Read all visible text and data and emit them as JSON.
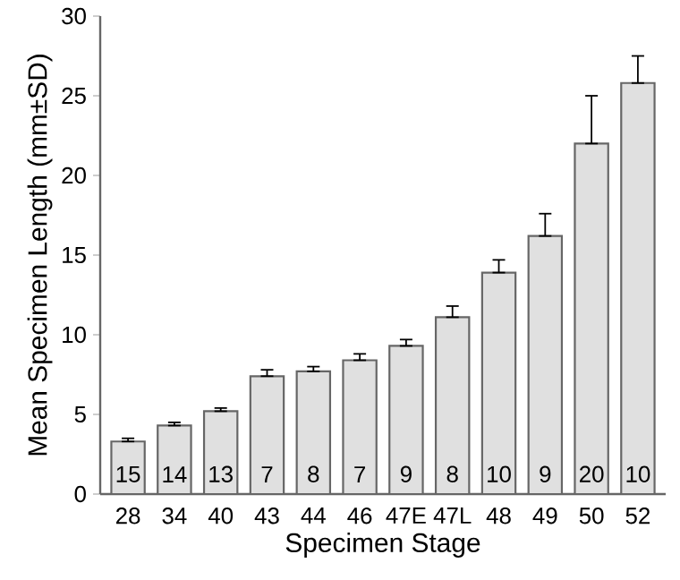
{
  "chart_data": {
    "type": "bar",
    "xlabel": "Specimen Stage",
    "ylabel": "Mean Specimen Length (mm±SD)",
    "categories": [
      "28",
      "34",
      "40",
      "43",
      "44",
      "46",
      "47E",
      "47L",
      "48",
      "49",
      "50",
      "52"
    ],
    "values": [
      3.3,
      4.3,
      5.2,
      7.4,
      7.7,
      8.4,
      9.3,
      11.1,
      13.9,
      16.2,
      22.0,
      25.8
    ],
    "errors": [
      [
        3.3,
        3.5
      ],
      [
        4.3,
        4.5
      ],
      [
        5.2,
        5.4
      ],
      [
        7.4,
        7.8
      ],
      [
        7.7,
        8.0
      ],
      [
        8.4,
        8.8
      ],
      [
        9.3,
        9.7
      ],
      [
        11.1,
        11.8
      ],
      [
        13.9,
        14.7
      ],
      [
        16.2,
        17.6
      ],
      [
        22.0,
        25.0
      ],
      [
        25.8,
        27.5
      ]
    ],
    "color": "#e0e0e0",
    "ylim": [
      0,
      30
    ],
    "yticks": [
      0,
      5,
      10,
      15,
      20,
      25,
      30
    ],
    "grid": false,
    "annotations": [
      "15",
      "14",
      "13",
      "7",
      "8",
      "7",
      "9",
      "8",
      "10",
      "9",
      "20",
      "10"
    ]
  }
}
